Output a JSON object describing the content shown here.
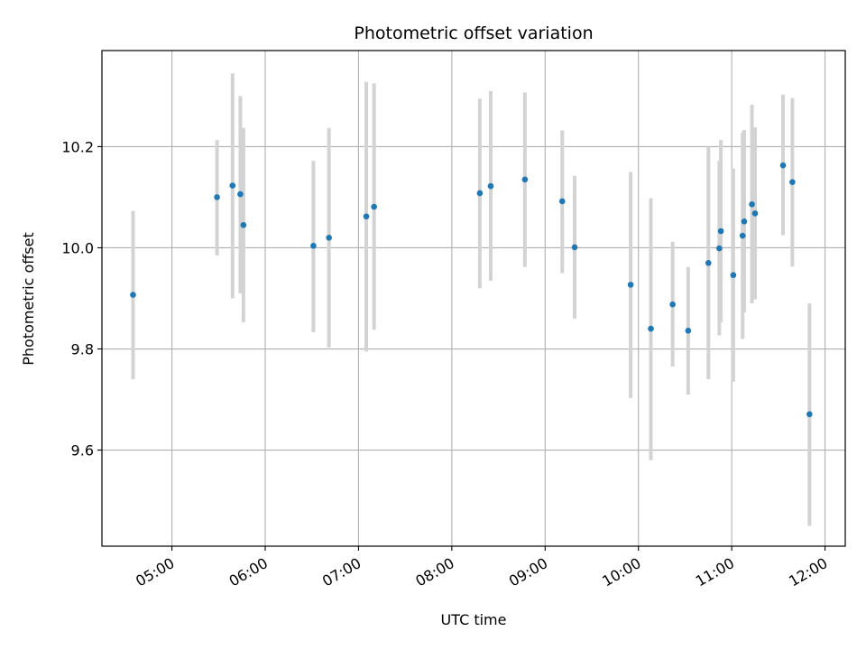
{
  "chart_data": {
    "type": "scatter",
    "title": "Photometric offset variation",
    "xlabel": "UTC time",
    "ylabel": "Photometric offset",
    "x_ticks": [
      "05:00",
      "06:00",
      "07:00",
      "08:00",
      "09:00",
      "10:00",
      "11:00",
      "12:00"
    ],
    "y_ticks": [
      "9.6",
      "9.8",
      "10.0",
      "10.2"
    ],
    "x_range": [
      "04:15",
      "12:13"
    ],
    "ylim": [
      9.41,
      10.39
    ],
    "grid": true,
    "series": [
      {
        "points": [
          {
            "x": "04:35",
            "y": 9.907,
            "err_low": 9.74,
            "err_high": 10.073
          },
          {
            "x": "05:29",
            "y": 10.1,
            "err_low": 9.985,
            "err_high": 10.213
          },
          {
            "x": "05:39",
            "y": 10.123,
            "err_low": 9.9,
            "err_high": 10.345
          },
          {
            "x": "05:44",
            "y": 10.106,
            "err_low": 9.91,
            "err_high": 10.3
          },
          {
            "x": "05:46",
            "y": 10.045,
            "err_low": 9.853,
            "err_high": 10.237
          },
          {
            "x": "06:31",
            "y": 10.004,
            "err_low": 9.833,
            "err_high": 10.172
          },
          {
            "x": "06:41",
            "y": 10.02,
            "err_low": 9.803,
            "err_high": 10.237
          },
          {
            "x": "07:05",
            "y": 10.062,
            "err_low": 9.795,
            "err_high": 10.328
          },
          {
            "x": "07:10",
            "y": 10.081,
            "err_low": 9.838,
            "err_high": 10.325
          },
          {
            "x": "08:18",
            "y": 10.108,
            "err_low": 9.92,
            "err_high": 10.295
          },
          {
            "x": "08:25",
            "y": 10.122,
            "err_low": 9.935,
            "err_high": 10.31
          },
          {
            "x": "08:47",
            "y": 10.135,
            "err_low": 9.962,
            "err_high": 10.307
          },
          {
            "x": "09:11",
            "y": 10.092,
            "err_low": 9.95,
            "err_high": 10.232
          },
          {
            "x": "09:19",
            "y": 10.001,
            "err_low": 9.86,
            "err_high": 10.142
          },
          {
            "x": "09:55",
            "y": 9.927,
            "err_low": 9.703,
            "err_high": 10.15
          },
          {
            "x": "10:08",
            "y": 9.84,
            "err_low": 9.58,
            "err_high": 10.098
          },
          {
            "x": "10:22",
            "y": 9.888,
            "err_low": 9.765,
            "err_high": 10.012
          },
          {
            "x": "10:32",
            "y": 9.836,
            "err_low": 9.71,
            "err_high": 9.962
          },
          {
            "x": "10:45",
            "y": 9.97,
            "err_low": 9.74,
            "err_high": 10.2
          },
          {
            "x": "10:52",
            "y": 9.999,
            "err_low": 9.827,
            "err_high": 10.172
          },
          {
            "x": "10:53",
            "y": 10.033,
            "err_low": 9.853,
            "err_high": 10.213
          },
          {
            "x": "11:01",
            "y": 9.946,
            "err_low": 9.735,
            "err_high": 10.157
          },
          {
            "x": "11:07",
            "y": 10.024,
            "err_low": 9.82,
            "err_high": 10.228
          },
          {
            "x": "11:08",
            "y": 10.052,
            "err_low": 9.872,
            "err_high": 10.233
          },
          {
            "x": "11:13",
            "y": 10.086,
            "err_low": 9.89,
            "err_high": 10.283
          },
          {
            "x": "11:15",
            "y": 10.068,
            "err_low": 9.898,
            "err_high": 10.238
          },
          {
            "x": "11:33",
            "y": 10.163,
            "err_low": 10.025,
            "err_high": 10.303
          },
          {
            "x": "11:39",
            "y": 10.13,
            "err_low": 9.963,
            "err_high": 10.296
          },
          {
            "x": "11:50",
            "y": 9.671,
            "err_low": 9.45,
            "err_high": 9.89
          }
        ]
      }
    ],
    "colors": {
      "marker": "#1f77b4",
      "errorbar": "#d3d3d3",
      "grid": "#b0b0b0",
      "axes": "#000000"
    }
  }
}
